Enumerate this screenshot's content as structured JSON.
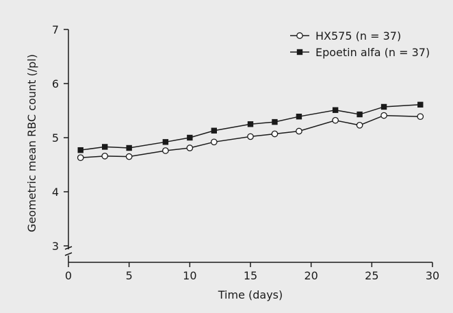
{
  "chart_data": {
    "type": "line",
    "xlabel": "Time (days)",
    "ylabel": "Geometric mean RBC count (/pl)",
    "xlim": [
      0,
      30
    ],
    "ylim": [
      3,
      7
    ],
    "y_axis_break": true,
    "xticks": [
      0,
      5,
      10,
      15,
      20,
      25,
      30
    ],
    "yticks": [
      3,
      4,
      5,
      6,
      7
    ],
    "grid": false,
    "legend_position": "top-right",
    "series": [
      {
        "name": "HX575 (n = 37)",
        "marker": "open-circle",
        "color": "#1a1a1a",
        "x": [
          1,
          3,
          5,
          8,
          10,
          12,
          15,
          17,
          19,
          22,
          24,
          26,
          29
        ],
        "y": [
          4.63,
          4.66,
          4.65,
          4.76,
          4.81,
          4.92,
          5.02,
          5.07,
          5.12,
          5.32,
          5.23,
          5.41,
          5.39
        ]
      },
      {
        "name": "Epoetin alfa (n = 37)",
        "marker": "filled-square",
        "color": "#1a1a1a",
        "x": [
          1,
          3,
          5,
          8,
          10,
          12,
          15,
          17,
          19,
          22,
          24,
          26,
          29
        ],
        "y": [
          4.77,
          4.83,
          4.81,
          4.92,
          5.0,
          5.13,
          5.25,
          5.29,
          5.39,
          5.51,
          5.43,
          5.57,
          5.61
        ]
      }
    ]
  }
}
